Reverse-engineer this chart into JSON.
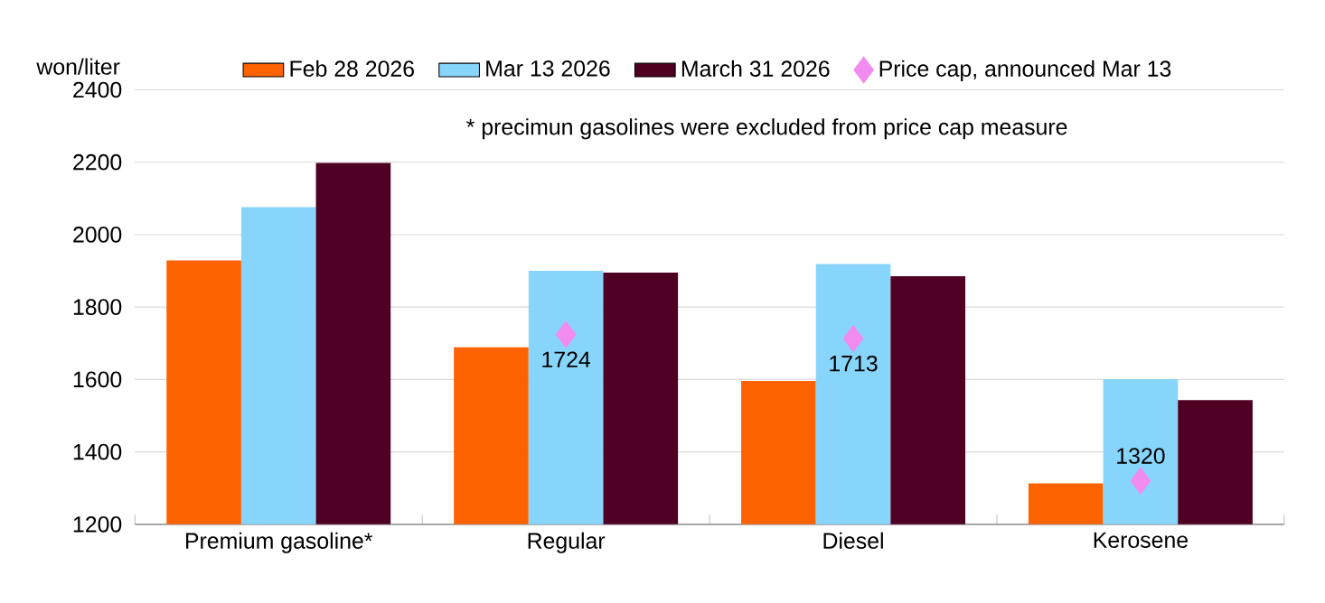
{
  "chart_data": {
    "type": "bar",
    "ylabel": "won/liter",
    "annotations": [
      "* precimun gasolines were excluded from price cap measure"
    ],
    "categories": [
      "Premium gasoline*",
      "Regular",
      "Diesel",
      "Kerosene"
    ],
    "series": [
      {
        "name": "Feb 28 2026",
        "color": "#ff6200",
        "values": [
          1929,
          1689,
          1596,
          1313
        ]
      },
      {
        "name": "Mar 13 2026",
        "color": "#87d5fb",
        "values": [
          2076,
          1900,
          1919,
          1601
        ]
      },
      {
        "name": "March 31 2026",
        "color": "#4f0022",
        "values": [
          2198,
          1895,
          1885,
          1543
        ]
      },
      {
        "name": "Price cap, announced Mar 13",
        "type": "scatter",
        "marker": "diamond",
        "color": "#f28bf0",
        "values": [
          null,
          1724,
          1713,
          1320
        ],
        "value_labels": [
          null,
          "1724",
          "1713",
          "1320"
        ]
      }
    ],
    "ylim": [
      1200,
      2400
    ],
    "yticks": [
      1200,
      1400,
      1600,
      1800,
      2000,
      2200,
      2400
    ],
    "grid": "y",
    "legend": "top"
  }
}
